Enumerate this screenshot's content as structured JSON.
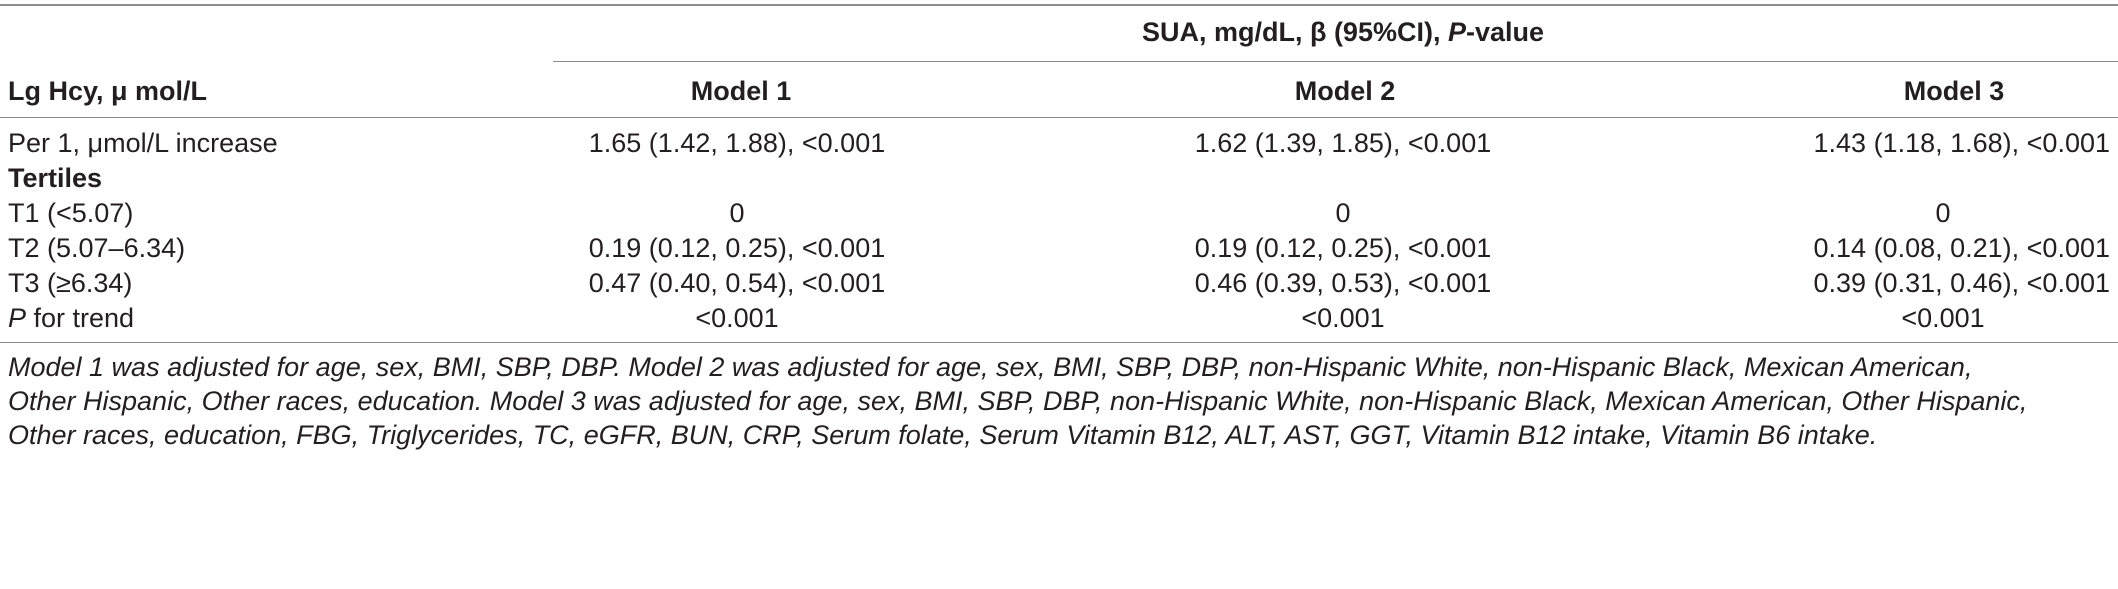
{
  "table": {
    "super_header": {
      "prefix": "SUA, mg/dL, β (95%CI), ",
      "p_italic": "P",
      "suffix": "-value"
    },
    "row_header": "Lg Hcy, μ mol/L",
    "columns": [
      "Model 1",
      "Model 2",
      "Model 3"
    ],
    "rows": [
      {
        "label": "Per 1, μmol/L increase",
        "values": [
          "1.65 (1.42, 1.88), <0.001",
          "1.62 (1.39, 1.85), <0.001",
          "1.43 (1.18, 1.68), <0.001"
        ]
      },
      {
        "label": "Tertiles",
        "section": true
      },
      {
        "label": "T1 (<5.07)",
        "values": [
          "0",
          "0",
          "0"
        ]
      },
      {
        "label": "T2 (5.07–6.34)",
        "values": [
          "0.19 (0.12, 0.25), <0.001",
          "0.19 (0.12, 0.25), <0.001",
          "0.14 (0.08, 0.21), <0.001"
        ]
      },
      {
        "label": "T3 (≥6.34)",
        "values": [
          "0.47 (0.40, 0.54), <0.001",
          "0.46 (0.39, 0.53), <0.001",
          "0.39 (0.31, 0.46), <0.001"
        ]
      },
      {
        "label_italic": "P",
        "label_rest": " for trend",
        "values": [
          "<0.001",
          "<0.001",
          "<0.001"
        ]
      }
    ]
  },
  "footnote_lines": [
    "Model 1 was adjusted for age, sex, BMI, SBP, DBP. Model 2 was adjusted for age, sex, BMI, SBP, DBP, non-Hispanic White, non-Hispanic Black, Mexican American,",
    "Other Hispanic, Other races, education. Model 3 was adjusted for age, sex, BMI, SBP, DBP, non-Hispanic White, non-Hispanic Black, Mexican American, Other Hispanic,",
    "Other races, education, FBG, Triglycerides, TC, eGFR, BUN, CRP, Serum folate, Serum Vitamin B12, ALT, AST, GGT, Vitamin B12 intake, Vitamin B6 intake."
  ]
}
